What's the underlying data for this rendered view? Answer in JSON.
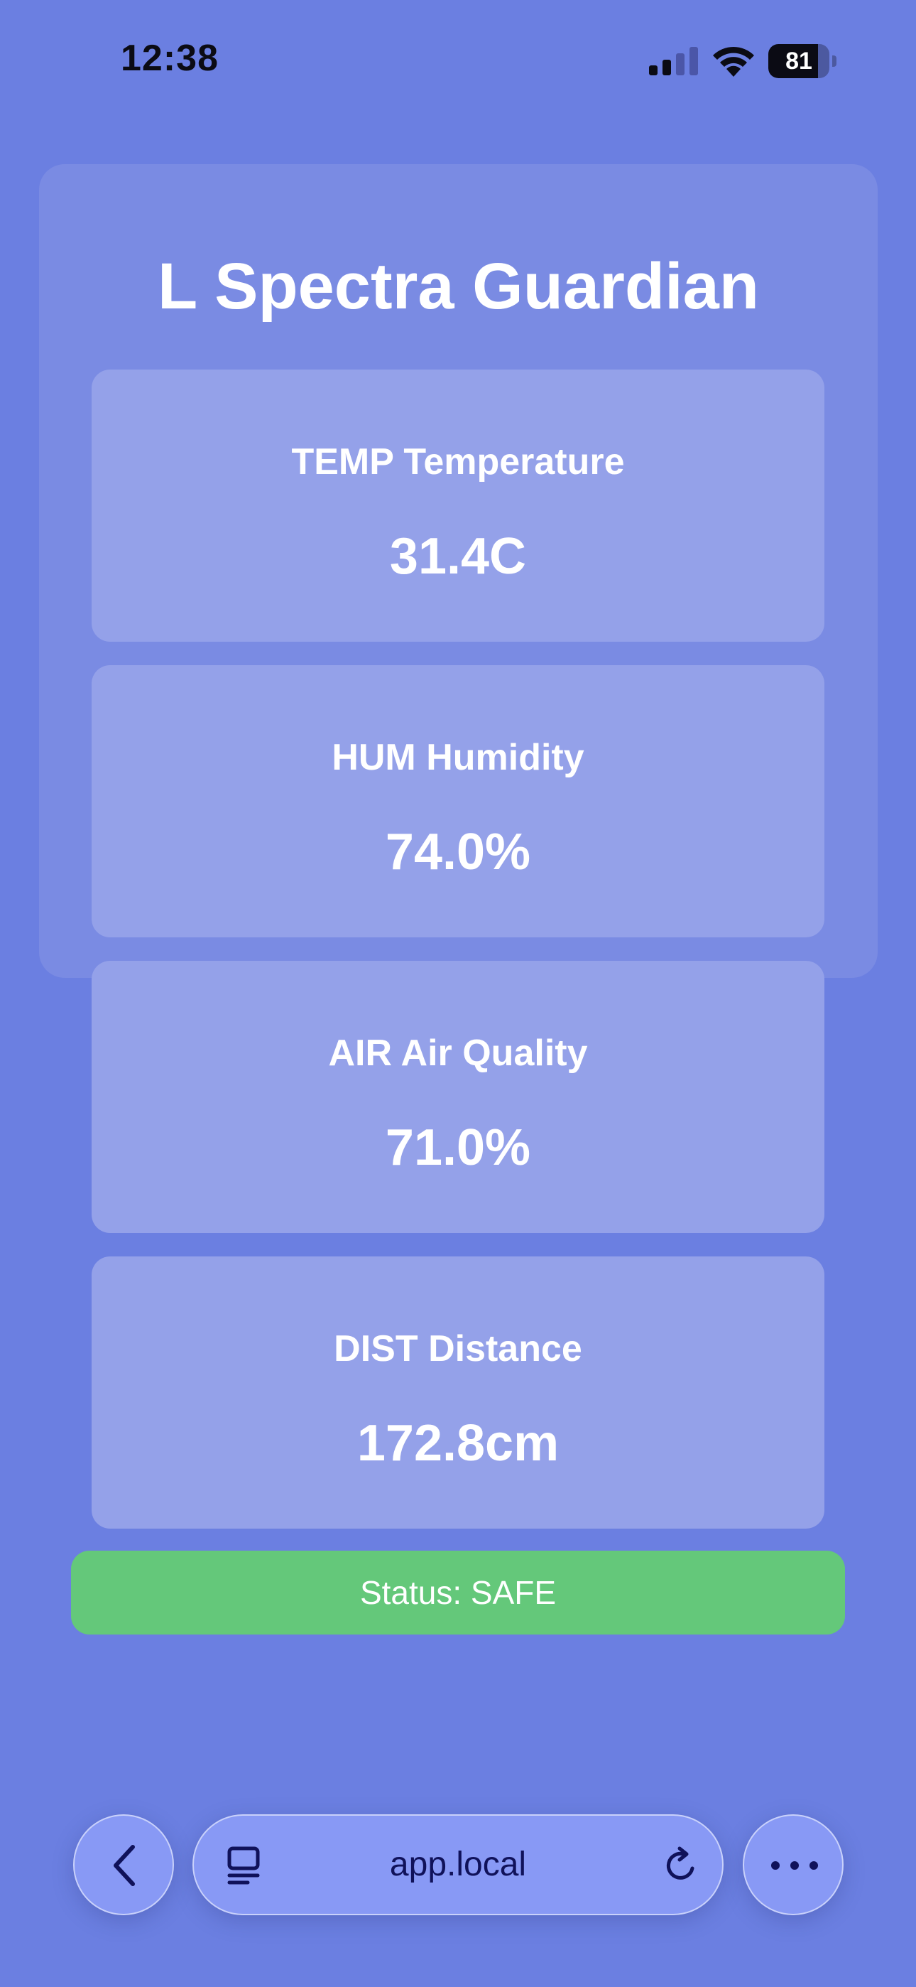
{
  "status_bar": {
    "time": "12:38",
    "battery_level": "81",
    "battery_fraction": 0.81,
    "icons": [
      "cellular-signal-icon",
      "wifi-icon",
      "battery-icon"
    ]
  },
  "app": {
    "title": "L Spectra Guardian",
    "sensors": [
      {
        "label": "TEMP Temperature",
        "value": "31.4C"
      },
      {
        "label": "HUM Humidity",
        "value": "74.0%"
      },
      {
        "label": "AIR Air Quality",
        "value": "71.0%"
      },
      {
        "label": "DIST Distance",
        "value": "172.8cm"
      }
    ],
    "status": "Status: SAFE"
  },
  "browser": {
    "url": "app.local",
    "icons": [
      "back-chevron-icon",
      "tabs-icon",
      "reload-icon",
      "more-icon"
    ]
  },
  "colors": {
    "background": "#6b7fe1",
    "card": "#7a8be3",
    "sensor_card": "#94a1e9",
    "status_safe": "#64c87a",
    "text": "#ffffff"
  }
}
